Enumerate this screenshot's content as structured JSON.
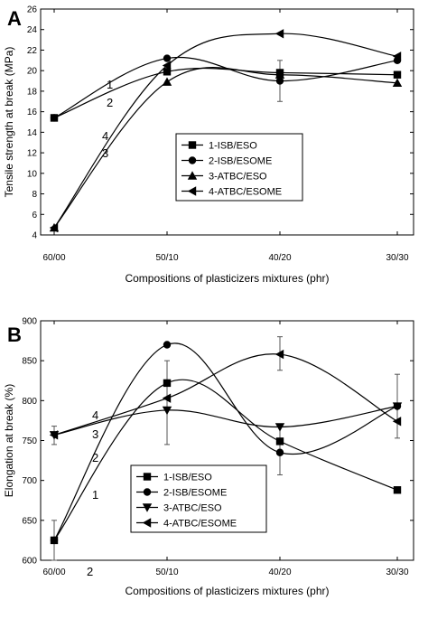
{
  "chart_data": [
    {
      "type": "line",
      "panel_label": "A",
      "categories": [
        "60/00",
        "50/10",
        "40/20",
        "30/30"
      ],
      "xlabel": "Compositions of plasticizers mixtures (phr)",
      "ylabel": "Tensile strength at break (MPa)",
      "ylim": [
        4,
        26
      ],
      "yticks": [
        4,
        6,
        8,
        10,
        12,
        14,
        16,
        18,
        20,
        22,
        24,
        26
      ],
      "legend_position": "center-right",
      "series": [
        {
          "name": "1-ISB/ESO",
          "curve_label": "1",
          "marker": "square",
          "values": [
            15.4,
            19.9,
            19.8,
            19.6
          ]
        },
        {
          "name": "2-ISB/ESOME",
          "curve_label": "2",
          "marker": "circle",
          "values": [
            15.4,
            21.2,
            19.0,
            21.0
          ]
        },
        {
          "name": "3-ATBC/ESO",
          "curve_label": "3",
          "marker": "triangle-up",
          "values": [
            4.7,
            18.9,
            19.6,
            18.8
          ]
        },
        {
          "name": "4-ATBC/ESOME",
          "curve_label": "4",
          "marker": "triangle-left",
          "values": [
            4.7,
            20.5,
            23.6,
            21.4
          ]
        }
      ],
      "error_bars": [
        {
          "series": "2-ISB/ESOME",
          "category": "40/20",
          "low": 17.0,
          "high": 21.0
        }
      ]
    },
    {
      "type": "line",
      "panel_label": "B",
      "categories": [
        "60/00",
        "50/10",
        "40/20",
        "30/30"
      ],
      "x_annotation": "2",
      "xlabel": "Compositions of plasticizers mixtures (phr)",
      "ylabel": "Elongation at break (%)",
      "ylim": [
        600,
        900
      ],
      "yticks": [
        600,
        650,
        700,
        750,
        800,
        850,
        900
      ],
      "legend_position": "bottom-left",
      "series": [
        {
          "name": "1-ISB/ESO",
          "curve_label": "1",
          "marker": "square",
          "values": [
            625,
            822,
            749,
            688
          ]
        },
        {
          "name": "2-ISB/ESOME",
          "curve_label": "2",
          "marker": "circle",
          "values": [
            625,
            870,
            735,
            793
          ]
        },
        {
          "name": "3-ATBC/ESO",
          "curve_label": "3",
          "marker": "triangle-down",
          "values": [
            757,
            788,
            767,
            793
          ]
        },
        {
          "name": "4-ATBC/ESOME",
          "curve_label": "4",
          "marker": "triangle-left",
          "values": [
            757,
            803,
            858,
            774
          ]
        }
      ],
      "error_bars": [
        {
          "series": "1-ISB/ESO",
          "category": "50/10",
          "low": 745,
          "high": 850
        },
        {
          "series": "3-ATBC/ESO",
          "category": "40/20",
          "low": 707,
          "high": 770
        },
        {
          "series": "4-ATBC/ESOME",
          "category": "40/20",
          "low": 838,
          "high": 880
        },
        {
          "series": "3-ATBC/ESO",
          "category": "30/30",
          "low": 753,
          "high": 833
        },
        {
          "series": "3-ATBC/ESO",
          "category": "60/00",
          "low": 745,
          "high": 768
        },
        {
          "series": "1-ISB/ESO",
          "category": "60/00",
          "low": 600,
          "high": 650
        }
      ]
    }
  ]
}
